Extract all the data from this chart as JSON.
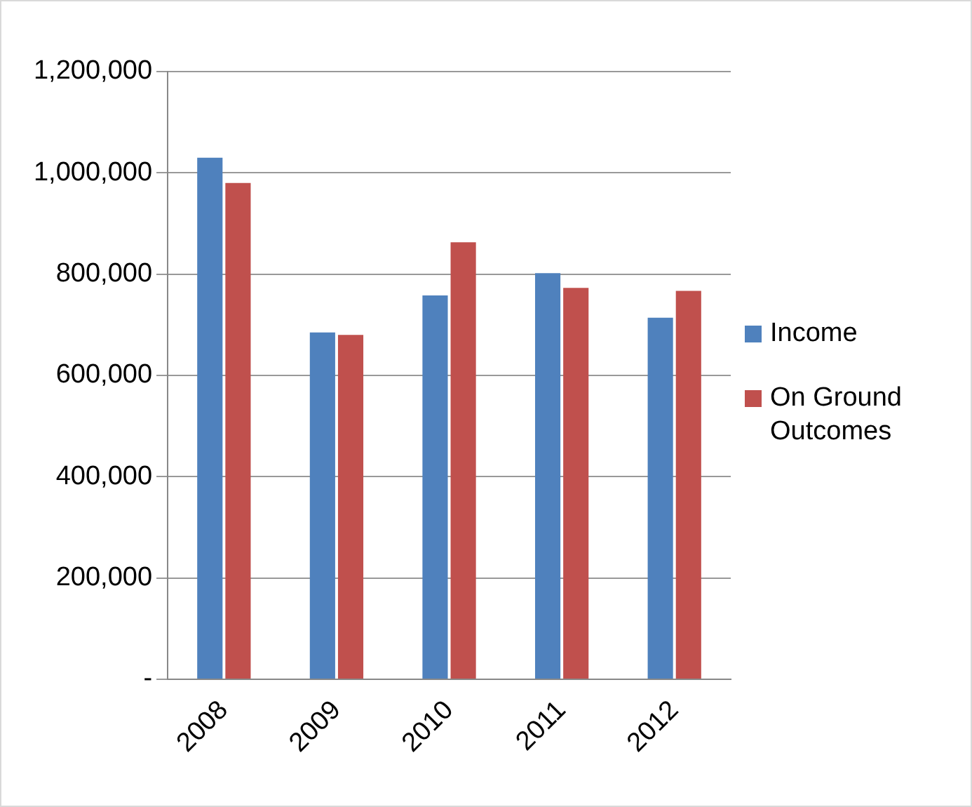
{
  "chart_data": {
    "type": "bar",
    "categories": [
      "2008",
      "2009",
      "2010",
      "2011",
      "2012"
    ],
    "series": [
      {
        "name": "Income",
        "color": "#4f81bd",
        "values": [
          1030000,
          685000,
          758000,
          802000,
          714000
        ]
      },
      {
        "name": "On Ground Outcomes",
        "color": "#c0504d",
        "values": [
          980000,
          680000,
          863000,
          773000,
          767000
        ]
      }
    ],
    "ylim": [
      0,
      1200000
    ],
    "yticks": [
      {
        "value": 0,
        "label": "-"
      },
      {
        "value": 200000,
        "label": "200,000"
      },
      {
        "value": 400000,
        "label": "400,000"
      },
      {
        "value": 600000,
        "label": "600,000"
      },
      {
        "value": 800000,
        "label": "800,000"
      },
      {
        "value": 1000000,
        "label": "1,000,000"
      },
      {
        "value": 1200000,
        "label": "1,200,000"
      }
    ],
    "grid": "y",
    "legend": "right"
  }
}
